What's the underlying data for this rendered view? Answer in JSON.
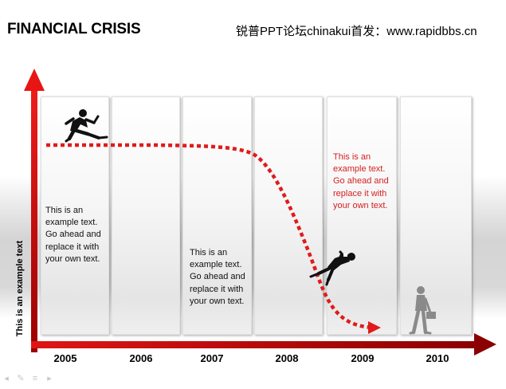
{
  "header": {
    "title": "FINANCIAL CRISIS",
    "watermark": "锐普PPT论坛chinakui首发：www.rapidbbs.cn"
  },
  "axis": {
    "y_label": "This is an example text"
  },
  "years": [
    "2005",
    "2006",
    "2007",
    "2008",
    "2009",
    "2010"
  ],
  "notes": {
    "note_2005": "This is an example text. Go ahead and replace it with your own text.",
    "note_2007": "This is an example text. Go ahead and replace it with your own text.",
    "note_2009": "This is an example text. Go ahead and replace it with your own text."
  },
  "colors": {
    "accent_red": "#d61818",
    "dark_red": "#8b0000",
    "note_red": "#d62020"
  },
  "icons": {
    "runner": "running-businessman-icon",
    "falling": "falling-businessman-icon",
    "walker": "walking-businessman-with-briefcase-icon"
  }
}
